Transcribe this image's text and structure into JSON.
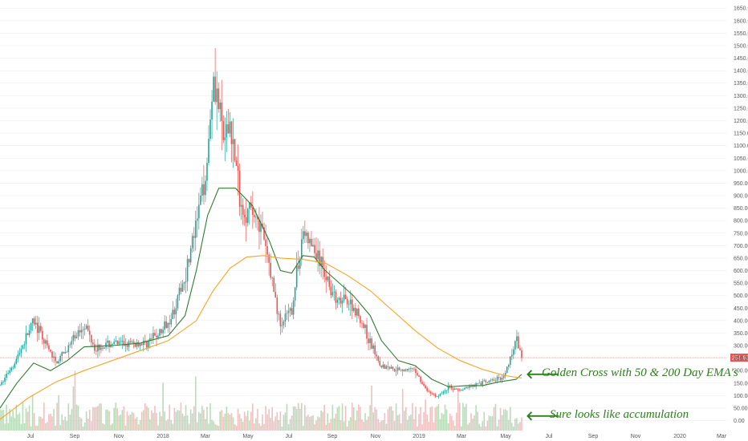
{
  "chart_data": {
    "type": "candlestick",
    "x_ticks": [
      "Jul",
      "Sep",
      "Nov",
      "2018",
      "Mar",
      "May",
      "Jul",
      "Sep",
      "Nov",
      "2019",
      "Mar",
      "May",
      "Jul",
      "Sep",
      "Nov",
      "2020",
      "Mar"
    ],
    "y_ticks": [
      "0.00",
      "50.00",
      "100.00",
      "150.00",
      "200.00",
      "250.00",
      "300.00",
      "350.00",
      "400.00",
      "450.00",
      "500.00",
      "550.00",
      "600.00",
      "650.00",
      "700.00",
      "750.00",
      "800.00",
      "850.00",
      "900.00",
      "950.00",
      "1000.00",
      "1050.00",
      "1100.00",
      "1150.00",
      "1200.00",
      "1250.00",
      "1300.00",
      "1350.00",
      "1400.00",
      "1450.00",
      "1500.00",
      "1550.00",
      "1600.00",
      "1650.00"
    ],
    "ylim": [
      -40,
      1670
    ],
    "last_price_label": "251.92",
    "last_price": 251.92,
    "price_path": [
      [
        0,
        140
      ],
      [
        3,
        250
      ],
      [
        6,
        400
      ],
      [
        8,
        310
      ],
      [
        10,
        230
      ],
      [
        12,
        285
      ],
      [
        15,
        390
      ],
      [
        17,
        290
      ],
      [
        20,
        310
      ],
      [
        23,
        305
      ],
      [
        26,
        310
      ],
      [
        29,
        360
      ],
      [
        31,
        440
      ],
      [
        33,
        580
      ],
      [
        35,
        780
      ],
      [
        37,
        1050
      ],
      [
        38,
        1400
      ],
      [
        40,
        1100
      ],
      [
        41,
        1200
      ],
      [
        43,
        850
      ],
      [
        46,
        820
      ],
      [
        48,
        620
      ],
      [
        50,
        380
      ],
      [
        52,
        440
      ],
      [
        54,
        760
      ],
      [
        56,
        680
      ],
      [
        58,
        590
      ],
      [
        60,
        470
      ],
      [
        62,
        480
      ],
      [
        64,
        420
      ],
      [
        66,
        310
      ],
      [
        68,
        220
      ],
      [
        70,
        210
      ],
      [
        72,
        205
      ],
      [
        74,
        200
      ],
      [
        76,
        120
      ],
      [
        78,
        95
      ],
      [
        80,
        135
      ],
      [
        82,
        120
      ],
      [
        84,
        140
      ],
      [
        86,
        150
      ],
      [
        88,
        160
      ],
      [
        90,
        180
      ],
      [
        92,
        330
      ],
      [
        93,
        251.92
      ]
    ],
    "series": [
      {
        "name": "EMA 50",
        "color": "#2e7d32",
        "points": [
          [
            0,
            50
          ],
          [
            3,
            150
          ],
          [
            6,
            230
          ],
          [
            9,
            200
          ],
          [
            12,
            240
          ],
          [
            15,
            295
          ],
          [
            20,
            300
          ],
          [
            25,
            310
          ],
          [
            30,
            340
          ],
          [
            33,
            420
          ],
          [
            35,
            600
          ],
          [
            37,
            820
          ],
          [
            39,
            930
          ],
          [
            42,
            930
          ],
          [
            45,
            860
          ],
          [
            48,
            720
          ],
          [
            50,
            600
          ],
          [
            52,
            590
          ],
          [
            54,
            660
          ],
          [
            56,
            655
          ],
          [
            58,
            600
          ],
          [
            60,
            560
          ],
          [
            63,
            500
          ],
          [
            66,
            420
          ],
          [
            68,
            320
          ],
          [
            71,
            240
          ],
          [
            74,
            220
          ],
          [
            77,
            165
          ],
          [
            80,
            135
          ],
          [
            83,
            140
          ],
          [
            86,
            140
          ],
          [
            89,
            155
          ],
          [
            92,
            165
          ],
          [
            93,
            185
          ]
        ]
      },
      {
        "name": "EMA 200",
        "color": "#f5a623",
        "points": [
          [
            0,
            5
          ],
          [
            5,
            90
          ],
          [
            10,
            155
          ],
          [
            15,
            200
          ],
          [
            20,
            240
          ],
          [
            25,
            280
          ],
          [
            30,
            320
          ],
          [
            35,
            400
          ],
          [
            38,
            520
          ],
          [
            41,
            610
          ],
          [
            44,
            655
          ],
          [
            47,
            660
          ],
          [
            50,
            650
          ],
          [
            54,
            645
          ],
          [
            58,
            630
          ],
          [
            62,
            580
          ],
          [
            66,
            520
          ],
          [
            70,
            440
          ],
          [
            74,
            360
          ],
          [
            78,
            290
          ],
          [
            82,
            240
          ],
          [
            86,
            205
          ],
          [
            90,
            180
          ],
          [
            93,
            170
          ]
        ]
      }
    ],
    "volume_color_up": "#9ccc9c",
    "volume_color_down": "#e8a7a7"
  },
  "annotations": {
    "golden_cross": "Golden Cross with 50 & 200 Day EMA's",
    "accumulation": "Sure looks like accumulation",
    "arrow_glyph": "🡐"
  },
  "colors": {
    "up": "#26a69a",
    "down": "#ef5350",
    "grid": "#eeeeee",
    "price_line": "#e57373",
    "annotation": "#2e7d1e"
  }
}
